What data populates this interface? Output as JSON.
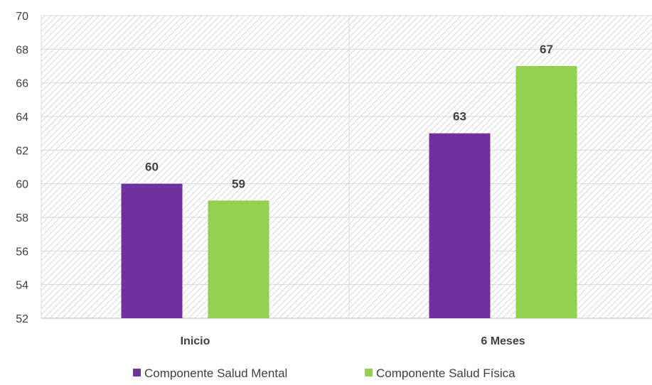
{
  "chart_data": {
    "type": "bar",
    "categories": [
      "Inicio",
      "6 Meses"
    ],
    "series": [
      {
        "name": "Componente Salud Mental",
        "values": [
          60,
          63
        ],
        "color": "#7030a0"
      },
      {
        "name": "Componente Salud Física",
        "values": [
          59,
          67
        ],
        "color": "#92d050"
      }
    ],
    "ylim": [
      52,
      70
    ],
    "ytick_step": 2,
    "grid": true,
    "legend": "bottom",
    "title": "",
    "xlabel": "",
    "ylabel": ""
  }
}
